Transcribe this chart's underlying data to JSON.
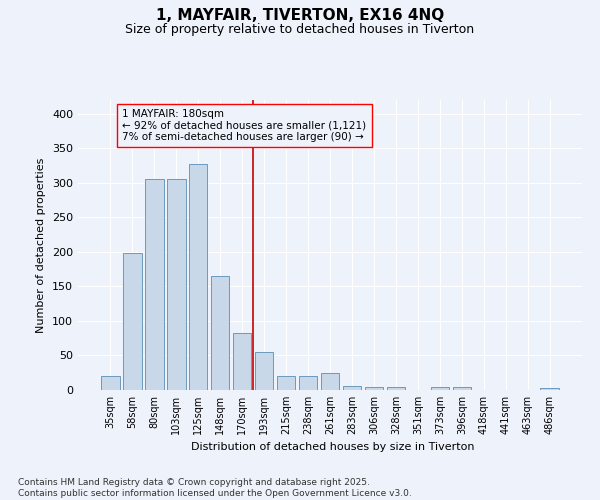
{
  "title": "1, MAYFAIR, TIVERTON, EX16 4NQ",
  "subtitle": "Size of property relative to detached houses in Tiverton",
  "xlabel": "Distribution of detached houses by size in Tiverton",
  "ylabel": "Number of detached properties",
  "bar_color": "#c8d8e8",
  "bar_edge_color": "#6a9abf",
  "categories": [
    "35sqm",
    "58sqm",
    "80sqm",
    "103sqm",
    "125sqm",
    "148sqm",
    "170sqm",
    "193sqm",
    "215sqm",
    "238sqm",
    "261sqm",
    "283sqm",
    "306sqm",
    "328sqm",
    "351sqm",
    "373sqm",
    "396sqm",
    "418sqm",
    "441sqm",
    "463sqm",
    "486sqm"
  ],
  "values": [
    20,
    198,
    305,
    305,
    327,
    165,
    82,
    55,
    20,
    20,
    25,
    6,
    5,
    5,
    0,
    4,
    4,
    0,
    0,
    0,
    3
  ],
  "vline_color": "#cc0000",
  "annotation_text": "1 MAYFAIR: 180sqm\n← 92% of detached houses are smaller (1,121)\n7% of semi-detached houses are larger (90) →",
  "ylim": [
    0,
    420
  ],
  "footer_text": "Contains HM Land Registry data © Crown copyright and database right 2025.\nContains public sector information licensed under the Open Government Licence v3.0.",
  "bg_color": "#eef2fb",
  "grid_color": "#ffffff",
  "title_fontsize": 11,
  "subtitle_fontsize": 9,
  "ylabel_fontsize": 8,
  "xlabel_fontsize": 8,
  "tick_fontsize": 7,
  "annotation_fontsize": 7.5,
  "footer_fontsize": 6.5
}
